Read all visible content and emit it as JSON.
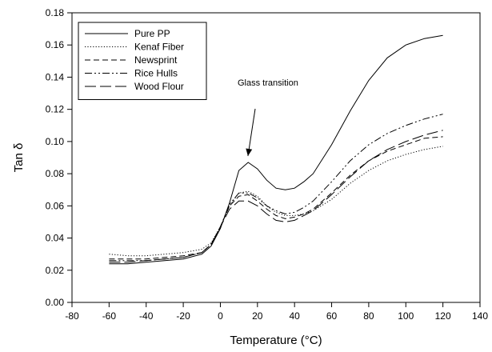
{
  "chart_data": {
    "type": "line",
    "title": "",
    "xlabel": "Temperature (°C)",
    "ylabel": "Tan δ",
    "xlim": [
      -80,
      140
    ],
    "ylim": [
      0.0,
      0.18
    ],
    "xticks": [
      "-80",
      "-60",
      "-40",
      "-20",
      "0",
      "20",
      "40",
      "60",
      "80",
      "100",
      "120",
      "140"
    ],
    "yticks": [
      "0.00",
      "0.02",
      "0.04",
      "0.06",
      "0.08",
      "0.10",
      "0.12",
      "0.14",
      "0.16",
      "0.18"
    ],
    "grid": false,
    "legend_position": "top-left",
    "annotation": {
      "text": "Glass transition",
      "x": 14,
      "y": 0.087
    },
    "series": [
      {
        "name": "Pure PP",
        "dash": "solid",
        "x": [
          -60,
          -50,
          -40,
          -30,
          -20,
          -10,
          -5,
          0,
          5,
          10,
          15,
          20,
          25,
          30,
          35,
          40,
          45,
          50,
          60,
          70,
          80,
          90,
          100,
          110,
          120
        ],
        "y": [
          0.024,
          0.024,
          0.025,
          0.026,
          0.027,
          0.03,
          0.035,
          0.046,
          0.062,
          0.082,
          0.087,
          0.083,
          0.076,
          0.071,
          0.07,
          0.071,
          0.075,
          0.08,
          0.098,
          0.119,
          0.138,
          0.152,
          0.16,
          0.164,
          0.166
        ]
      },
      {
        "name": "Kenaf Fiber",
        "dash": "dotted",
        "x": [
          -60,
          -50,
          -40,
          -30,
          -20,
          -10,
          -5,
          0,
          5,
          10,
          15,
          20,
          25,
          30,
          35,
          40,
          45,
          50,
          60,
          70,
          80,
          90,
          100,
          110,
          120
        ],
        "y": [
          0.03,
          0.029,
          0.029,
          0.03,
          0.031,
          0.033,
          0.037,
          0.047,
          0.06,
          0.068,
          0.069,
          0.066,
          0.06,
          0.056,
          0.054,
          0.054,
          0.055,
          0.057,
          0.064,
          0.074,
          0.082,
          0.088,
          0.092,
          0.095,
          0.097
        ]
      },
      {
        "name": "Newsprint",
        "dash": "short-dash",
        "x": [
          -60,
          -50,
          -40,
          -30,
          -20,
          -10,
          -5,
          0,
          5,
          10,
          15,
          20,
          25,
          30,
          35,
          40,
          45,
          50,
          60,
          70,
          80,
          90,
          100,
          110,
          120
        ],
        "y": [
          0.027,
          0.027,
          0.027,
          0.028,
          0.029,
          0.031,
          0.036,
          0.047,
          0.06,
          0.066,
          0.067,
          0.063,
          0.058,
          0.054,
          0.052,
          0.053,
          0.055,
          0.058,
          0.068,
          0.079,
          0.088,
          0.094,
          0.098,
          0.102,
          0.103
        ]
      },
      {
        "name": "Rice Hulls",
        "dash": "dash-dot-dot",
        "x": [
          -60,
          -50,
          -40,
          -30,
          -20,
          -10,
          -5,
          0,
          5,
          10,
          15,
          20,
          25,
          30,
          35,
          40,
          45,
          50,
          60,
          70,
          80,
          90,
          100,
          110,
          120
        ],
        "y": [
          0.026,
          0.026,
          0.026,
          0.027,
          0.028,
          0.031,
          0.036,
          0.047,
          0.061,
          0.068,
          0.068,
          0.065,
          0.06,
          0.057,
          0.055,
          0.056,
          0.059,
          0.063,
          0.075,
          0.088,
          0.098,
          0.105,
          0.11,
          0.114,
          0.117
        ]
      },
      {
        "name": "Wood Flour",
        "dash": "long-dash",
        "x": [
          -60,
          -50,
          -40,
          -30,
          -20,
          -10,
          -5,
          0,
          5,
          10,
          15,
          20,
          25,
          30,
          35,
          40,
          45,
          50,
          60,
          70,
          80,
          90,
          100,
          110,
          120
        ],
        "y": [
          0.025,
          0.025,
          0.026,
          0.027,
          0.028,
          0.031,
          0.036,
          0.047,
          0.058,
          0.063,
          0.063,
          0.06,
          0.055,
          0.051,
          0.05,
          0.051,
          0.054,
          0.057,
          0.067,
          0.078,
          0.088,
          0.095,
          0.1,
          0.104,
          0.107
        ]
      }
    ]
  }
}
